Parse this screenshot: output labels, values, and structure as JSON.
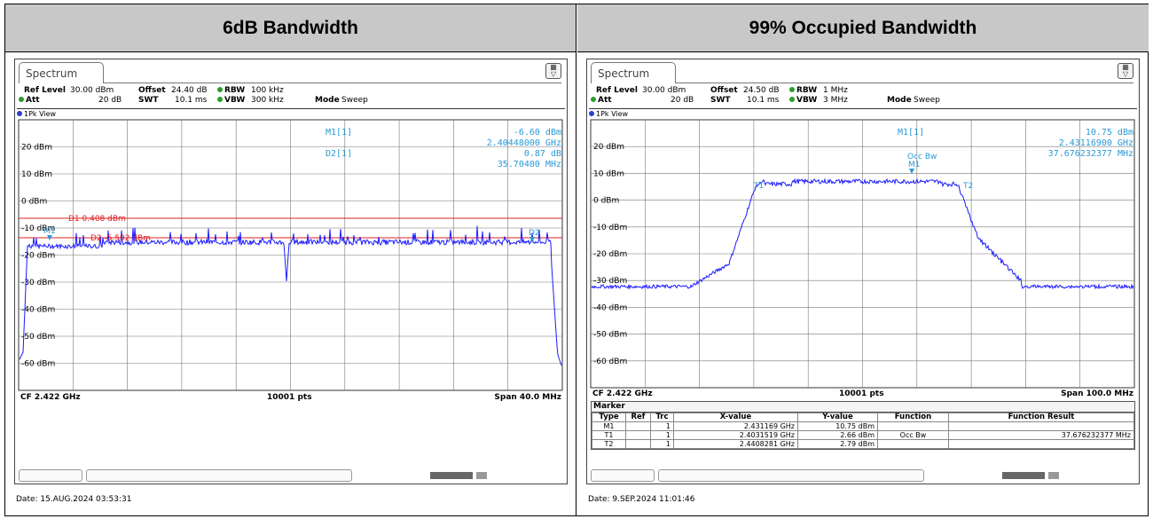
{
  "panels": [
    {
      "title": "6dB Bandwidth",
      "tab": "Spectrum",
      "params": {
        "ref_level_label": "Ref Level",
        "ref_level": "30.00 dBm",
        "offset_label": "Offset",
        "offset": "24.40 dB",
        "rbw_label": "RBW",
        "rbw": "100 kHz",
        "att_label": "Att",
        "att": "20 dB",
        "swt_label": "SWT",
        "swt": "10.1 ms",
        "vbw_label": "VBW",
        "vbw": "300 kHz",
        "mode_label": "Mode",
        "mode": "Sweep"
      },
      "view": "1Pk View",
      "y_labels": [
        "20 dBm",
        "10 dBm",
        "0 dBm",
        "-10 dBm",
        "-20 dBm",
        "-30 dBm",
        "-40 dBm",
        "-50 dBm",
        "-60 dBm"
      ],
      "marker_readout": {
        "m1_name": "M1[1]",
        "m1_level": "-6.60 dBm",
        "m1_freq": "2.40448000 GHz",
        "d2_name": "D2[1]",
        "d2_level": "0.87 dB",
        "d2_freq": "35.70400 MHz"
      },
      "lines": {
        "d1": "D1  0.408 dBm",
        "d2": "D2  -5.592 dBm"
      },
      "trace_markers": {
        "m1": "M1",
        "d2": "D2"
      },
      "footer": {
        "cf": "CF 2.422 GHz",
        "pts": "10001 pts",
        "span": "Span 40.0 MHz"
      },
      "date": "Date: 15.AUG.2024  03:53:31"
    },
    {
      "title": "99% Occupied Bandwidth",
      "tab": "Spectrum",
      "params": {
        "ref_level_label": "Ref Level",
        "ref_level": "30.00 dBm",
        "offset_label": "Offset",
        "offset": "24.50 dB",
        "rbw_label": "RBW",
        "rbw": "1 MHz",
        "att_label": "Att",
        "att": "20 dB",
        "swt_label": "SWT",
        "swt": "10.1 ms",
        "vbw_label": "VBW",
        "vbw": "3 MHz",
        "mode_label": "Mode",
        "mode": "Sweep"
      },
      "view": "1Pk View",
      "y_labels": [
        "20 dBm",
        "10 dBm",
        "0 dBm",
        "-10 dBm",
        "-20 dBm",
        "-30 dBm",
        "-40 dBm",
        "-50 dBm",
        "-60 dBm"
      ],
      "marker_readout": {
        "m1_name": "M1[1]",
        "m1_level": "10.75 dBm",
        "m1_freq": "2.43116900 GHz",
        "occ_value": "37.676232377 MHz"
      },
      "trace_markers": {
        "occ": "Occ Bw",
        "m1": "M1",
        "t1": "T1",
        "t2": "T2"
      },
      "footer": {
        "cf": "CF 2.422 GHz",
        "pts": "10001 pts",
        "span": "Span 100.0 MHz"
      },
      "marker_table": {
        "title": "Marker",
        "headers": [
          "Type",
          "Ref",
          "Trc",
          "X-value",
          "Y-value",
          "Function",
          "Function Result"
        ],
        "rows": [
          [
            "M1",
            "",
            "1",
            "2.431169 GHz",
            "10.75 dBm",
            "",
            ""
          ],
          [
            "T1",
            "",
            "1",
            "2.4031519 GHz",
            "2.66 dBm",
            "Occ Bw",
            "37.676232377 MHz"
          ],
          [
            "T2",
            "",
            "1",
            "2.4408281 GHz",
            "2.79 dBm",
            "",
            ""
          ]
        ]
      },
      "date": "Date: 9.SEP.2024  11:01:46"
    }
  ],
  "colors": {
    "trace": "#1a1aff",
    "marker": "#2a9ad6",
    "limit": "#e02020",
    "header_bg": "#c8c8c8"
  }
}
